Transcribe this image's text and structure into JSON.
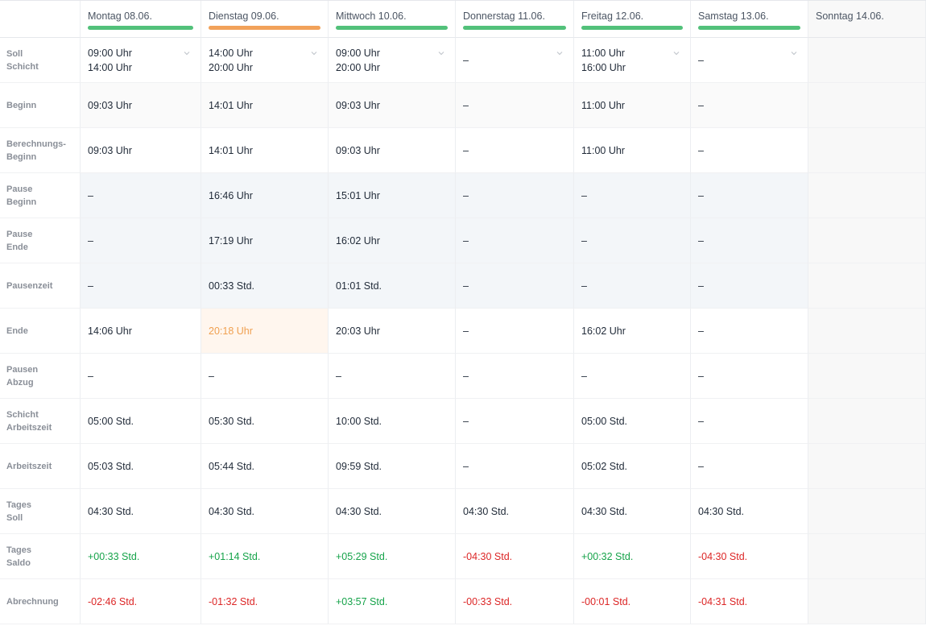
{
  "colors": {
    "status_green": "#52c17a",
    "status_orange": "#f2a25a",
    "positive": "#16a34a",
    "negative": "#dc2626",
    "highlight_text": "#f0a050"
  },
  "days": [
    {
      "label": "Montag 08.06.",
      "status": "green"
    },
    {
      "label": "Dienstag 09.06.",
      "status": "orange"
    },
    {
      "label": "Mittwoch 10.06.",
      "status": "green"
    },
    {
      "label": "Donnerstag 11.06.",
      "status": "green"
    },
    {
      "label": "Freitag 12.06.",
      "status": "green"
    },
    {
      "label": "Samstag 13.06.",
      "status": "green"
    },
    {
      "label": "Sonntag 14.06.",
      "status": ""
    }
  ],
  "rows": [
    {
      "key": "soll_schicht",
      "label_lines": [
        "Soll",
        "Schicht"
      ],
      "values": [
        [
          "09:00 Uhr",
          "14:00 Uhr"
        ],
        [
          "14:00 Uhr",
          "20:00 Uhr"
        ],
        [
          "09:00 Uhr",
          "20:00 Uhr"
        ],
        [
          "–",
          ""
        ],
        [
          "11:00 Uhr",
          "16:00 Uhr"
        ],
        [
          "–",
          ""
        ]
      ]
    },
    {
      "key": "beginn",
      "label_lines": [
        "Beginn",
        ""
      ],
      "values": [
        "09:03 Uhr",
        "14:01 Uhr",
        "09:03 Uhr",
        "–",
        "11:00 Uhr",
        "–"
      ]
    },
    {
      "key": "berechnungs_beginn",
      "label_lines": [
        "Berechnungs-",
        "Beginn"
      ],
      "values": [
        "09:03 Uhr",
        "14:01 Uhr",
        "09:03 Uhr",
        "–",
        "11:00 Uhr",
        "–"
      ]
    },
    {
      "key": "pause_beginn",
      "label_lines": [
        "Pause",
        "Beginn"
      ],
      "values": [
        "–",
        "16:46 Uhr",
        "15:01 Uhr",
        "–",
        "–",
        "–"
      ]
    },
    {
      "key": "pause_ende",
      "label_lines": [
        "Pause",
        "Ende"
      ],
      "values": [
        "–",
        "17:19 Uhr",
        "16:02 Uhr",
        "–",
        "–",
        "–"
      ]
    },
    {
      "key": "pausenzeit",
      "label_lines": [
        "Pausenzeit",
        ""
      ],
      "values": [
        "–",
        "00:33 Std.",
        "01:01 Std.",
        "–",
        "–",
        "–"
      ]
    },
    {
      "key": "ende",
      "label_lines": [
        "Ende",
        ""
      ],
      "values": [
        "14:06 Uhr",
        "20:18 Uhr",
        "20:03 Uhr",
        "–",
        "16:02 Uhr",
        "–"
      ]
    },
    {
      "key": "pausen_abzug",
      "label_lines": [
        "Pausen",
        "Abzug"
      ],
      "values": [
        "–",
        "–",
        "–",
        "–",
        "–",
        "–"
      ]
    },
    {
      "key": "schicht_arbeitszeit",
      "label_lines": [
        "Schicht",
        "Arbeitszeit"
      ],
      "values": [
        "05:00 Std.",
        "05:30 Std.",
        "10:00 Std.",
        "–",
        "05:00 Std.",
        "–"
      ]
    },
    {
      "key": "arbeitszeit",
      "label_lines": [
        "Arbeitszeit",
        ""
      ],
      "values": [
        "05:03 Std.",
        "05:44 Std.",
        "09:59 Std.",
        "–",
        "05:02 Std.",
        "–"
      ]
    },
    {
      "key": "tages_soll",
      "label_lines": [
        "Tages",
        "Soll"
      ],
      "values": [
        "04:30 Std.",
        "04:30 Std.",
        "04:30 Std.",
        "04:30 Std.",
        "04:30 Std.",
        "04:30 Std."
      ]
    },
    {
      "key": "tages_saldo",
      "label_lines": [
        "Tages",
        "Saldo"
      ],
      "values": [
        "+00:33 Std.",
        "+01:14 Std.",
        "+05:29 Std.",
        "-04:30 Std.",
        "+00:32 Std.",
        "-04:30 Std."
      ]
    },
    {
      "key": "abrechnung",
      "label_lines": [
        "Abrechnung",
        ""
      ],
      "values": [
        "-02:46 Std.",
        "-01:32 Std.",
        "+03:57 Std.",
        "-00:33 Std.",
        "-00:01 Std.",
        "-04:31 Std."
      ]
    }
  ]
}
